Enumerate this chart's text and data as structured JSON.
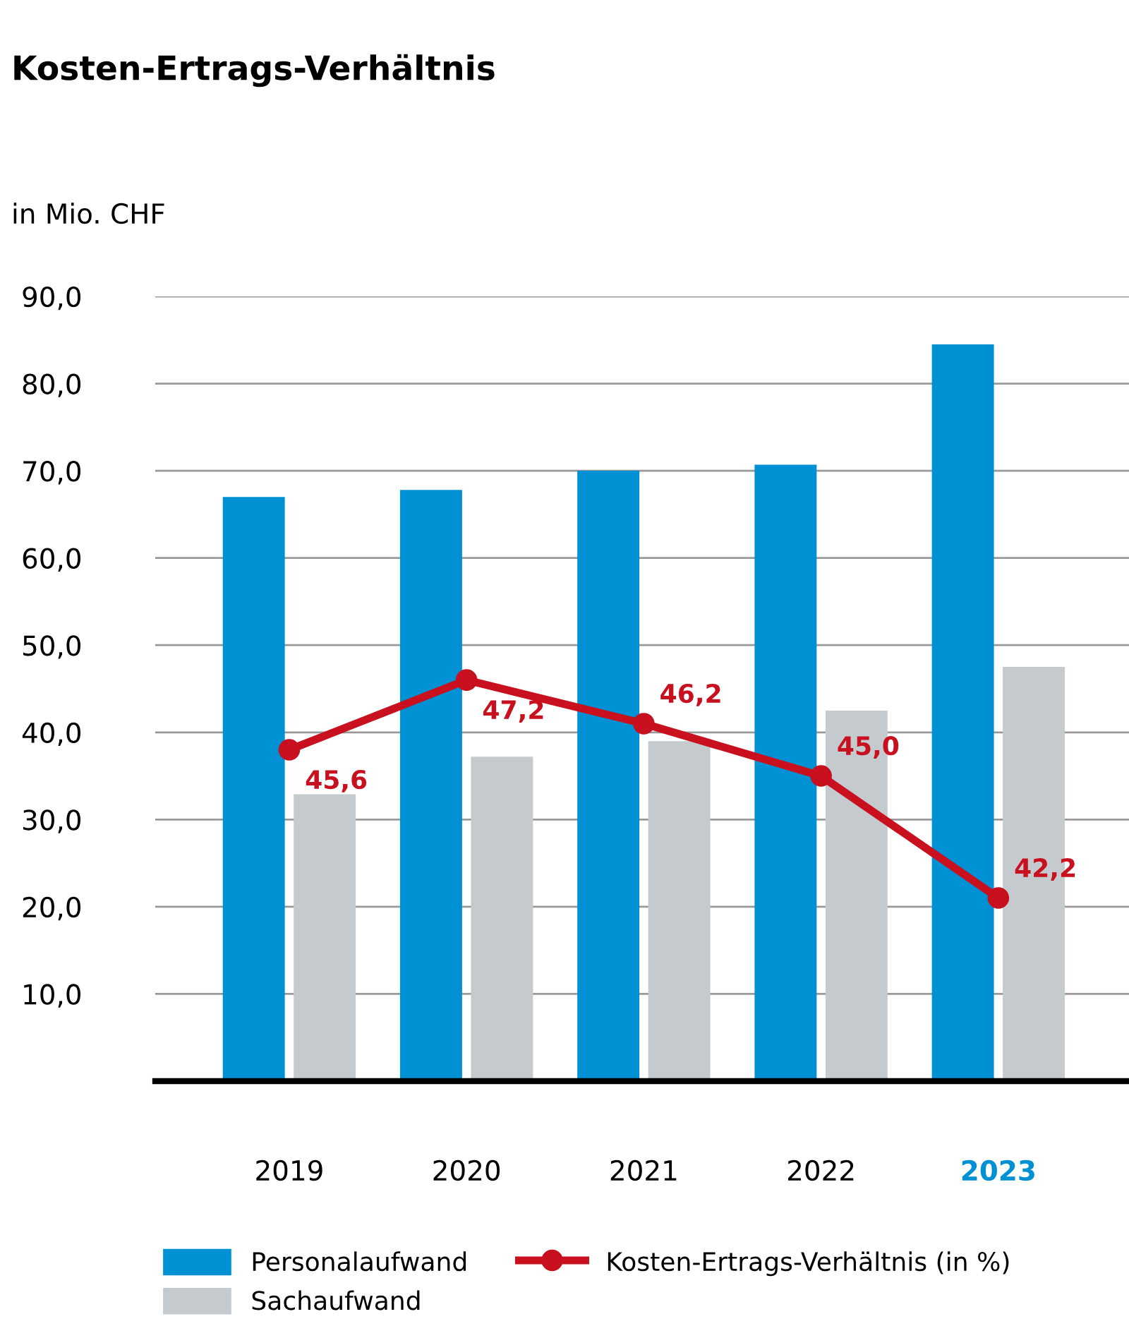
{
  "chart_data": {
    "type": "bar",
    "title": "Kosten-Ertrags-Verhältnis",
    "ylabel": "in Mio. CHF",
    "categories": [
      "2019",
      "2020",
      "2021",
      "2022",
      "2023"
    ],
    "series": [
      {
        "name": "Personalaufwand",
        "color": "#0090d4",
        "values": [
          67.0,
          67.8,
          70.0,
          70.7,
          84.5
        ]
      },
      {
        "name": "Sachaufwand",
        "color": "#c4cacd",
        "values": [
          32.9,
          37.2,
          39.0,
          42.5,
          47.5
        ]
      },
      {
        "name": "Kosten-Ertrags-Verhältnis (in %)",
        "type": "line",
        "axis": "y2",
        "color": "#c8101e",
        "marker": "circle",
        "values": [
          45.6,
          47.2,
          46.2,
          45.0,
          42.2
        ],
        "value_labels": [
          "45,6",
          "47,2",
          "46,2",
          "45,0",
          "42,2"
        ]
      }
    ],
    "ylim": [
      0,
      90
    ],
    "yticks": [
      {
        "value": 0,
        "label": null
      },
      {
        "value": 10,
        "label": "10,0"
      },
      {
        "value": 20,
        "label": "20,0"
      },
      {
        "value": 30,
        "label": "30,0"
      },
      {
        "value": 40,
        "label": "40,0"
      },
      {
        "value": 50,
        "label": "50,0"
      },
      {
        "value": 60,
        "label": "60,0"
      },
      {
        "value": 70,
        "label": "70,0"
      },
      {
        "value": 80,
        "label": "80,0"
      },
      {
        "value": 90,
        "label": "90,0"
      }
    ],
    "y2lim": [
      38,
      56
    ],
    "grid": "y",
    "legend": "bottom"
  }
}
